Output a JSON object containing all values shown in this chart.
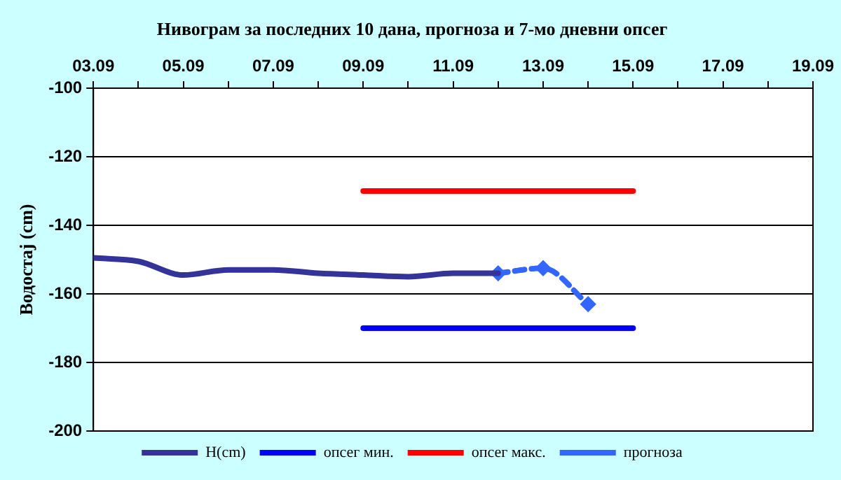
{
  "chart_data": {
    "type": "line",
    "title": "Нивограм за последних 10 дана, прогноза и 7-мо дневни опсег",
    "ylabel": "Водостај (cm)",
    "xlim": [
      "--09-03",
      "--09-19"
    ],
    "xticks": [
      {
        "value": "--09-03",
        "label": "03.09"
      },
      {
        "value": "--09-04",
        "label": null
      },
      {
        "value": "--09-05",
        "label": "05.09"
      },
      {
        "value": "--09-06",
        "label": null
      },
      {
        "value": "--09-07",
        "label": "07.09"
      },
      {
        "value": "--09-08",
        "label": null
      },
      {
        "value": "--09-09",
        "label": "09.09"
      },
      {
        "value": "--09-10",
        "label": null
      },
      {
        "value": "--09-11",
        "label": "11.09"
      },
      {
        "value": "--09-12",
        "label": null
      },
      {
        "value": "--09-13",
        "label": "13.09"
      },
      {
        "value": "--09-14",
        "label": null
      },
      {
        "value": "--09-15",
        "label": "15.09"
      },
      {
        "value": "--09-16",
        "label": null
      },
      {
        "value": "--09-17",
        "label": "17.09"
      },
      {
        "value": "--09-18",
        "label": null
      },
      {
        "value": "--09-19",
        "label": "19.09"
      }
    ],
    "ylim": [
      -200,
      -100
    ],
    "yticks": [
      -200,
      -180,
      -160,
      -140,
      -120,
      -100
    ],
    "grid": "y",
    "legend": "bottom",
    "series": [
      {
        "name": "H(cm)",
        "color": "#333399",
        "x": [
          "--09-03",
          "--09-04",
          "--09-05",
          "--09-06",
          "--09-07",
          "--09-08",
          "--09-09",
          "--09-10",
          "--09-11",
          "--09-12"
        ],
        "values": [
          -149.5,
          -150.5,
          -154.5,
          -153,
          -153,
          -154,
          -154.5,
          -155,
          -154,
          -154
        ],
        "marker": "none",
        "line_style": "solid"
      },
      {
        "name": "опсег мин.",
        "color": "#0000ff",
        "x": [
          "--09-09",
          "--09-15"
        ],
        "values": [
          -170,
          -170
        ],
        "marker": "none",
        "line_style": "solid"
      },
      {
        "name": "опсег макс.",
        "color": "#ff0000",
        "x": [
          "--09-09",
          "--09-15"
        ],
        "values": [
          -130,
          -130
        ],
        "marker": "none",
        "line_style": "solid"
      },
      {
        "name": "прогноза",
        "color": "#3366ff",
        "x": [
          "--09-12",
          "--09-13",
          "--09-14"
        ],
        "values": [
          -154,
          -152.5,
          -163
        ],
        "marker": "diamond",
        "line_style": "dashed"
      }
    ]
  }
}
